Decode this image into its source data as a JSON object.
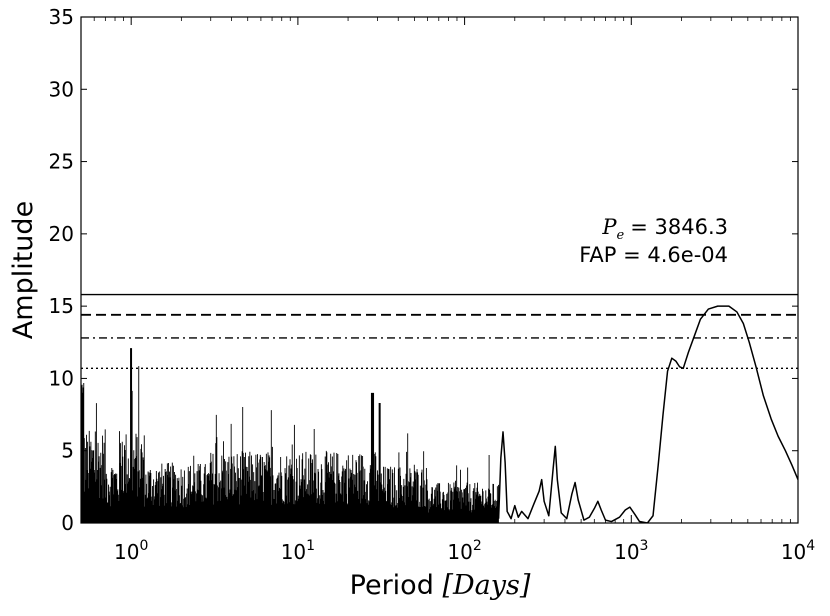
{
  "chart_data": {
    "type": "line",
    "xlabel_prefix": "Period",
    "xlabel_unit": "[Days]",
    "ylabel": "Amplitude",
    "xscale": "log",
    "xlim": [
      0.5,
      10000
    ],
    "ylim": [
      0,
      35
    ],
    "x_ticks": [
      {
        "base": "10",
        "exp": "0",
        "value": 1
      },
      {
        "base": "10",
        "exp": "1",
        "value": 10
      },
      {
        "base": "10",
        "exp": "2",
        "value": 100
      },
      {
        "base": "10",
        "exp": "3",
        "value": 1000
      },
      {
        "base": "10",
        "exp": "4",
        "value": 10000
      }
    ],
    "y_ticks": [
      "0",
      "5",
      "10",
      "15",
      "20",
      "25",
      "30",
      "35"
    ],
    "annotation": {
      "period_symbol": "P",
      "period_subscript": "e",
      "period_value": "= 3846.3",
      "fap_text": "FAP = 4.6e-04"
    },
    "threshold_lines": [
      {
        "style": "solid",
        "y": 15.8
      },
      {
        "style": "dashed",
        "y": 14.4
      },
      {
        "style": "dashdot",
        "y": 12.8
      },
      {
        "style": "dotted",
        "y": 10.7
      }
    ],
    "series": [
      {
        "style": "solid",
        "points": [
          [
            160,
            0.3
          ],
          [
            165,
            4.5
          ],
          [
            170,
            6.3
          ],
          [
            175,
            4.2
          ],
          [
            180,
            0.8
          ],
          [
            190,
            0.3
          ],
          [
            200,
            1.2
          ],
          [
            210,
            0.4
          ],
          [
            220,
            0.8
          ],
          [
            240,
            0.3
          ],
          [
            260,
            1.3
          ],
          [
            280,
            2.2
          ],
          [
            290,
            3.0
          ],
          [
            300,
            1.5
          ],
          [
            320,
            0.5
          ],
          [
            340,
            3.8
          ],
          [
            350,
            5.3
          ],
          [
            360,
            3.0
          ],
          [
            380,
            0.7
          ],
          [
            410,
            0.3
          ],
          [
            440,
            2.0
          ],
          [
            460,
            2.8
          ],
          [
            480,
            1.6
          ],
          [
            520,
            0.2
          ],
          [
            560,
            0.4
          ],
          [
            600,
            1.0
          ],
          [
            630,
            1.5
          ],
          [
            660,
            0.9
          ],
          [
            700,
            0.2
          ],
          [
            760,
            0.1
          ],
          [
            850,
            0.4
          ],
          [
            920,
            0.9
          ],
          [
            980,
            1.1
          ],
          [
            1050,
            0.6
          ],
          [
            1120,
            0.1
          ],
          [
            1250,
            0.0
          ],
          [
            1350,
            0.5
          ],
          [
            1450,
            4.0
          ],
          [
            1550,
            7.5
          ],
          [
            1650,
            10.5
          ],
          [
            1750,
            11.4
          ],
          [
            1850,
            11.2
          ],
          [
            1950,
            10.8
          ],
          [
            2050,
            10.7
          ],
          [
            2200,
            11.8
          ],
          [
            2400,
            13.0
          ],
          [
            2600,
            14.1
          ],
          [
            2900,
            14.8
          ],
          [
            3300,
            15.0
          ],
          [
            3850,
            15.0
          ],
          [
            4300,
            14.6
          ],
          [
            4700,
            13.8
          ],
          [
            5100,
            12.5
          ],
          [
            5600,
            10.8
          ],
          [
            6200,
            8.8
          ],
          [
            6900,
            7.2
          ],
          [
            7600,
            6.0
          ],
          [
            8400,
            5.0
          ],
          [
            9200,
            4.0
          ],
          [
            10000,
            3.0
          ]
        ]
      }
    ]
  }
}
